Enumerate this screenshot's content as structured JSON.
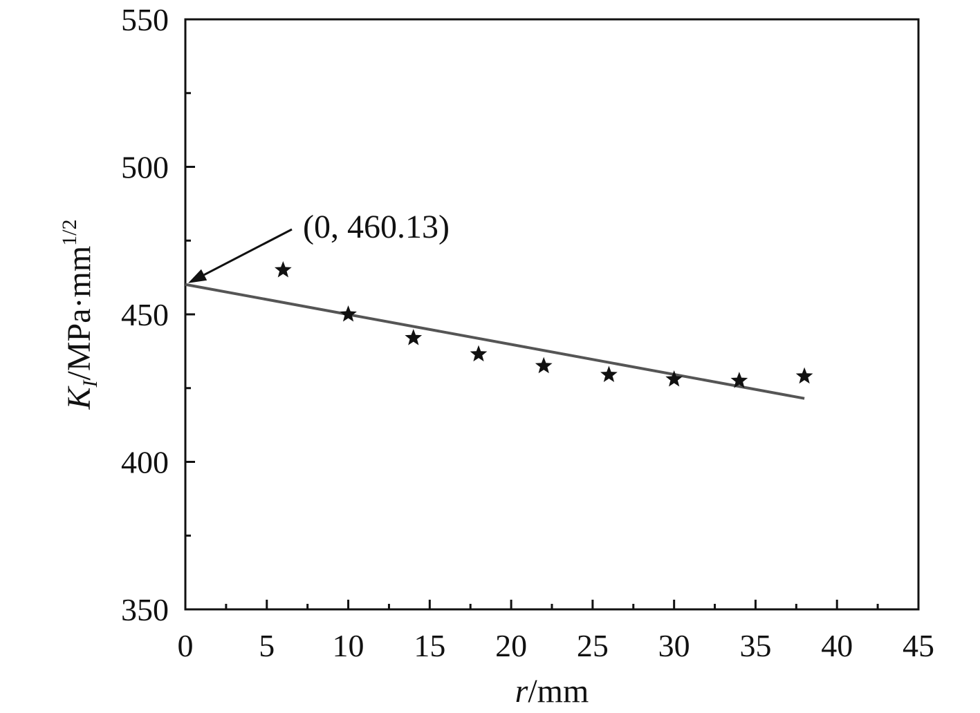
{
  "chart_data": {
    "type": "scatter",
    "xlabel_italic": "r",
    "xlabel_rest": "/mm",
    "ylabel_main": "K",
    "ylabel_sub": "I",
    "ylabel_units": "/MPa·mm",
    "ylabel_sup": "1/2",
    "xlim": [
      0,
      45
    ],
    "ylim": [
      350,
      550
    ],
    "xticks": [
      "0",
      "5",
      "10",
      "15",
      "20",
      "25",
      "30",
      "35",
      "40",
      "45"
    ],
    "yticks": [
      "350",
      "400",
      "450",
      "500",
      "550"
    ],
    "points": {
      "marker": "star",
      "x": [
        6,
        10,
        14,
        18,
        22,
        26,
        30,
        34,
        38
      ],
      "y": [
        465,
        450,
        442,
        436.5,
        432.5,
        429.5,
        428,
        427.5,
        429
      ]
    },
    "fit_line": {
      "x": [
        0,
        38
      ],
      "y": [
        460.13,
        421.5
      ]
    },
    "annotation": {
      "text": "(0, 460.13)",
      "x": 0,
      "y": 460.13
    },
    "grid": false,
    "colors": {
      "axis": "#111111",
      "marker": "#111111",
      "fit_line": "#555555"
    }
  }
}
